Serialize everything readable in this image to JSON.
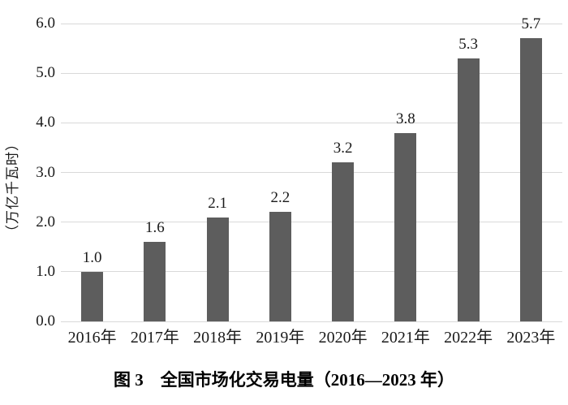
{
  "chart_data": {
    "type": "bar",
    "title": "图 3　全国市场化交易电量（2016—2023 年）",
    "xlabel": "",
    "ylabel": "（万亿千瓦时）",
    "categories": [
      "2016年",
      "2017年",
      "2018年",
      "2019年",
      "2020年",
      "2021年",
      "2022年",
      "2023年"
    ],
    "values": [
      1.0,
      1.6,
      2.1,
      2.2,
      3.2,
      3.8,
      5.3,
      5.7
    ],
    "data_labels": [
      "1.0",
      "1.6",
      "2.1",
      "2.2",
      "3.2",
      "3.8",
      "5.3",
      "5.7"
    ],
    "yticks": [
      "0.0",
      "1.0",
      "2.0",
      "3.0",
      "4.0",
      "5.0",
      "6.0"
    ],
    "ylim": [
      0.0,
      6.0
    ],
    "grid": "horizontal",
    "legend": "none",
    "colors": {
      "bar": "#5d5d5d",
      "gridline": "#d9d9d9",
      "text": "#1a1a1a",
      "background": "#ffffff"
    }
  }
}
